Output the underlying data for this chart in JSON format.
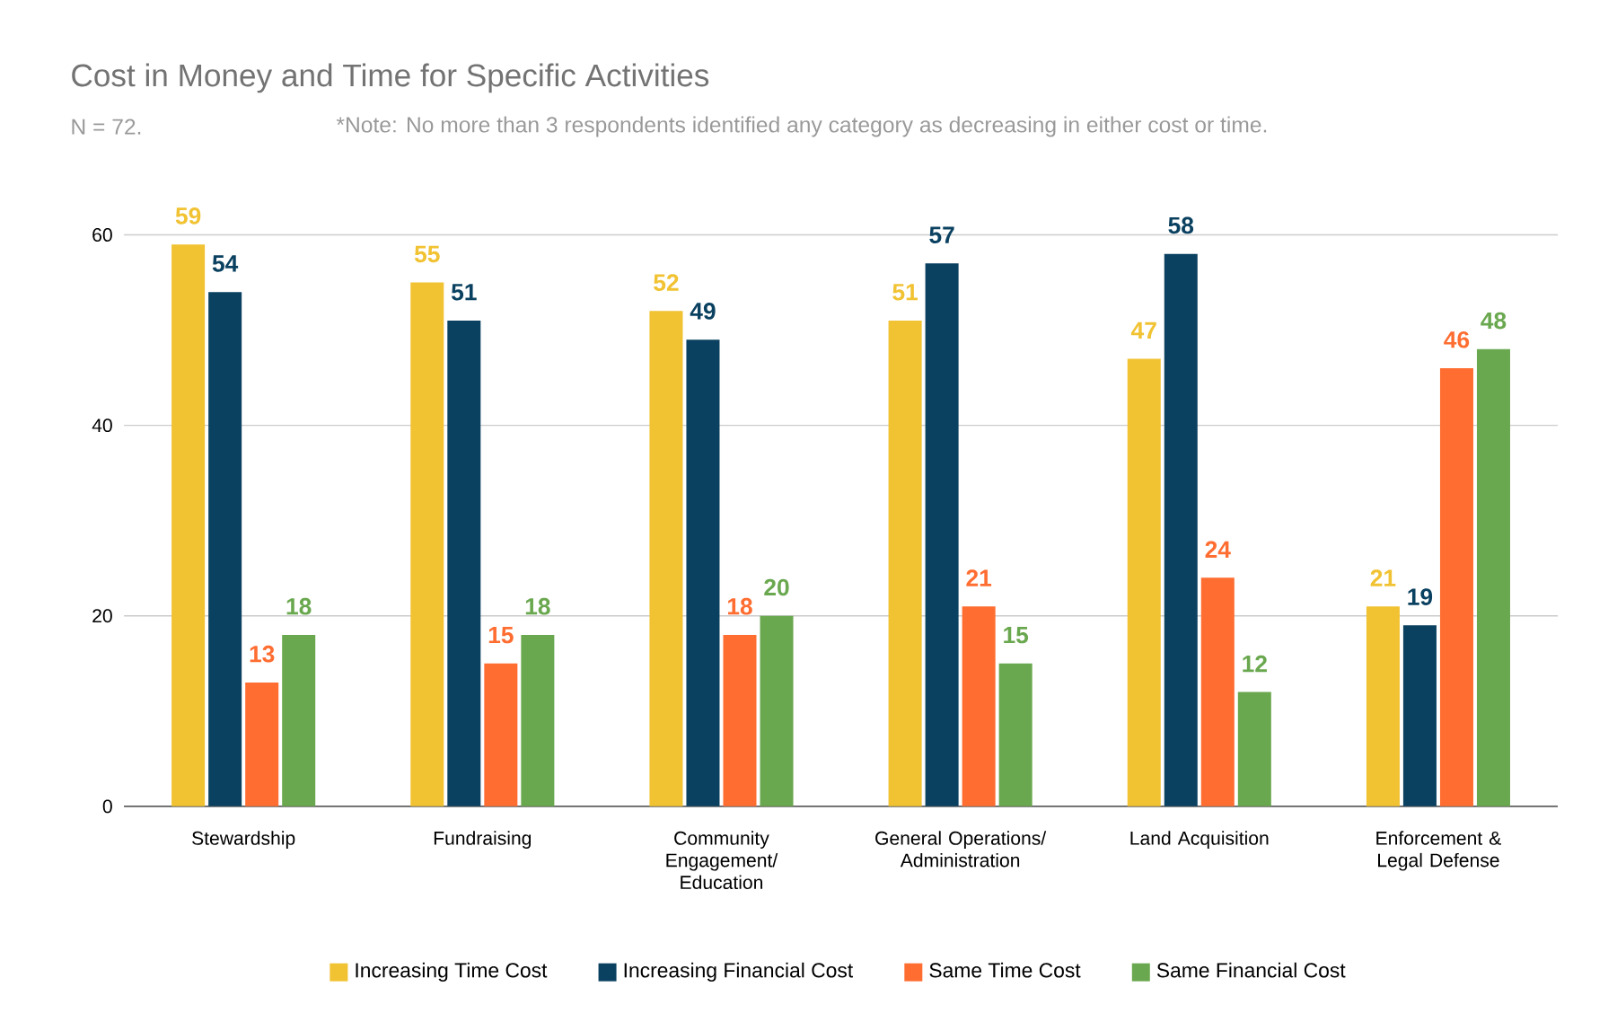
{
  "chart_data": {
    "type": "bar",
    "title": "Cost in Money and Time for Specific Activities",
    "subtitle": "N = 72.",
    "annotations": [
      "*Note: No more than 3 respondents identified any category as decreasing in either cost or time."
    ],
    "categories": [
      "Stewardship",
      "Fundraising",
      "Community Engagement/ Education",
      "General Operations/ Administration",
      "Land Acquisition",
      "Enforcement & Legal Defense"
    ],
    "series": [
      {
        "name": "Increasing Time Cost",
        "color": "#f1c232",
        "values": [
          59,
          55,
          52,
          51,
          47,
          21
        ]
      },
      {
        "name": "Increasing Financial Cost",
        "color": "#0b4160",
        "values": [
          54,
          51,
          49,
          57,
          58,
          19
        ]
      },
      {
        "name": "Same Time Cost",
        "color": "#ff6d31",
        "values": [
          13,
          15,
          18,
          21,
          24,
          46
        ]
      },
      {
        "name": "Same Financial Cost",
        "color": "#6aa84f",
        "values": [
          18,
          18,
          20,
          15,
          12,
          48
        ]
      }
    ],
    "ylim": [
      0,
      60
    ],
    "yticks": [
      0,
      20,
      40,
      60
    ],
    "grid": "y",
    "legend": "bottom",
    "data_labels": true
  }
}
